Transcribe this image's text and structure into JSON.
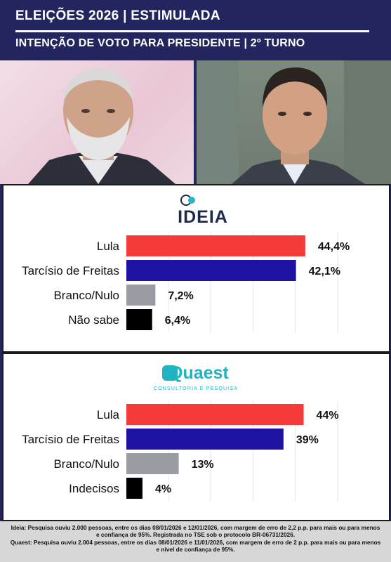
{
  "header": {
    "title": "ELEIÇÕES 2026 | ESTIMULADA",
    "subtitle": "INTENÇÃO DE VOTO PARA PRESIDENTE | 2º TURNO"
  },
  "logos": {
    "ideia": "IDEIA",
    "quaest": "Quaest",
    "quaest_tagline": "CONSULTORIA E PESQUISA"
  },
  "colors": {
    "header_bg": "#23265e",
    "lula": "#f53a3a",
    "tarcisio": "#1e12a3",
    "branco_nulo": "#9a9ca3",
    "black": "#000000"
  },
  "chart_data": [
    {
      "type": "bar",
      "pollster": "IDEIA",
      "categories": [
        "Lula",
        "Tarcísio de Freitas",
        "Branco/Nulo",
        "Não sabe"
      ],
      "values": [
        44.4,
        42.1,
        7.2,
        6.4
      ],
      "value_labels": [
        "44,4%",
        "42,1%",
        "7,2%",
        "6,4%"
      ],
      "colors": [
        "#f53a3a",
        "#1e12a3",
        "#9a9ca3",
        "#000000"
      ],
      "orientation": "horizontal",
      "xlim": [
        0,
        50
      ],
      "grid": true
    },
    {
      "type": "bar",
      "pollster": "Quaest",
      "categories": [
        "Lula",
        "Tarcísio de Freitas",
        "Branco/Nulo",
        "Indecisos"
      ],
      "values": [
        44,
        39,
        13,
        4
      ],
      "value_labels": [
        "44%",
        "39%",
        "13%",
        "4%"
      ],
      "colors": [
        "#f53a3a",
        "#1e12a3",
        "#9a9ca3",
        "#000000"
      ],
      "orientation": "horizontal",
      "xlim": [
        0,
        50
      ],
      "grid": true
    }
  ],
  "footer": {
    "ideia_note": "Ideia: Pesquisa ouviu 2.000 pessoas, entre os dias 08/01/2026 e 12/01/2026, com margem de erro de 2,2 p.p. para mais ou para menos e confiança de 95%. Registrada no TSE sob o protocolo BR-06731/2026.",
    "quaest_note": "Quaest: Pesquisa ouviu 2.004 pessoas, entre os dias 08/01/2026 e 11/01/2026, com margem de erro de 2 p.p. para mais ou para menos e nível de confiança de 95%."
  }
}
